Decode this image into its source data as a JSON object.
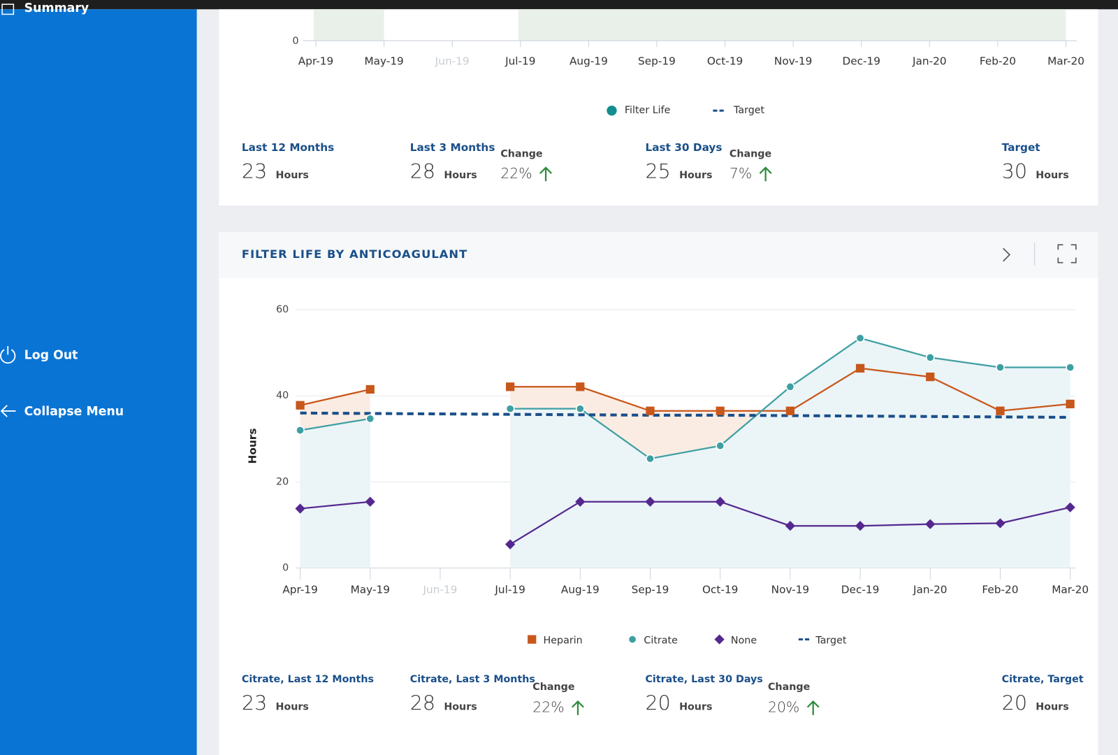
{
  "sidebar": {
    "items": [
      {
        "label": "Summary"
      },
      {
        "label": "Log Out"
      },
      {
        "label": "Collapse Menu"
      }
    ]
  },
  "chart_data": [
    {
      "type": "line",
      "categories": [
        "Apr-19",
        "May-19",
        "Jun-19",
        "Jul-19",
        "Aug-19",
        "Sep-19",
        "Oct-19",
        "Nov-19",
        "Dec-19",
        "Jan-20",
        "Feb-20",
        "Mar-20"
      ],
      "yticks": [
        0
      ],
      "series": [
        {
          "name": "Filter Life",
          "color": "#138d90"
        },
        {
          "name": "Target",
          "color": "#1a4f8a"
        }
      ]
    },
    {
      "type": "line",
      "title": "FILTER LIFE BY ANTICOAGULANT",
      "y_label": "Hours",
      "categories": [
        "Apr-19",
        "May-19",
        "Jun-19",
        "Jul-19",
        "Aug-19",
        "Sep-19",
        "Oct-19",
        "Nov-19",
        "Dec-19",
        "Jan-20",
        "Feb-20",
        "Mar-20"
      ],
      "ylim": [
        0,
        60
      ],
      "yticks": [
        0,
        20,
        40,
        60
      ],
      "grid": true,
      "series": [
        {
          "name": "Heparin",
          "color": "#c8571b",
          "marker": "square",
          "values": [
            37.8,
            41.5,
            null,
            42.1,
            42.1,
            36.5,
            36.5,
            36.5,
            46.4,
            44.4,
            36.5,
            38.1
          ]
        },
        {
          "name": "Citrate",
          "color": "#3e9fa3",
          "marker": "circle",
          "values": [
            32,
            34.7,
            null,
            37,
            37,
            25.4,
            28.4,
            42.1,
            53.4,
            48.9,
            46.6,
            46.6
          ]
        },
        {
          "name": "None",
          "color": "#55288f",
          "marker": "diamond",
          "values": [
            13.8,
            15.4,
            null,
            5.5,
            15.4,
            15.4,
            15.4,
            9.8,
            9.8,
            10.2,
            10.4,
            14.1
          ]
        },
        {
          "name": "Target",
          "color": "#1a4f8a",
          "dashed": true,
          "values": [
            36,
            35.9,
            35.8,
            35.7,
            35.6,
            35.5,
            35.5,
            35.4,
            35.3,
            35.2,
            35.1,
            35
          ]
        }
      ]
    }
  ],
  "top_stats": [
    {
      "label": "Last 12 Months",
      "value": 23,
      "unit": "Hours"
    },
    {
      "label": "Last 3 Months",
      "value": 28,
      "unit": "Hours",
      "change_label": "Change",
      "change": "22%"
    },
    {
      "label": "Last 30 Days",
      "value": 25,
      "unit": "Hours",
      "change_label": "Change",
      "change": "7%"
    },
    {
      "label": "Target",
      "value": 30,
      "unit": "Hours"
    }
  ],
  "bottom_stats": [
    {
      "label": "Citrate, Last 12 Months",
      "value": 23,
      "unit": "Hours"
    },
    {
      "label": "Citrate, Last 3 Months",
      "value": 28,
      "unit": "Hours",
      "change_label": "Change",
      "change": "22%"
    },
    {
      "label": "Citrate, Last 30 Days",
      "value": 20,
      "unit": "Hours",
      "change_label": "Change",
      "change": "20%"
    },
    {
      "label": "Citrate, Target",
      "value": 20,
      "unit": "Hours"
    }
  ]
}
